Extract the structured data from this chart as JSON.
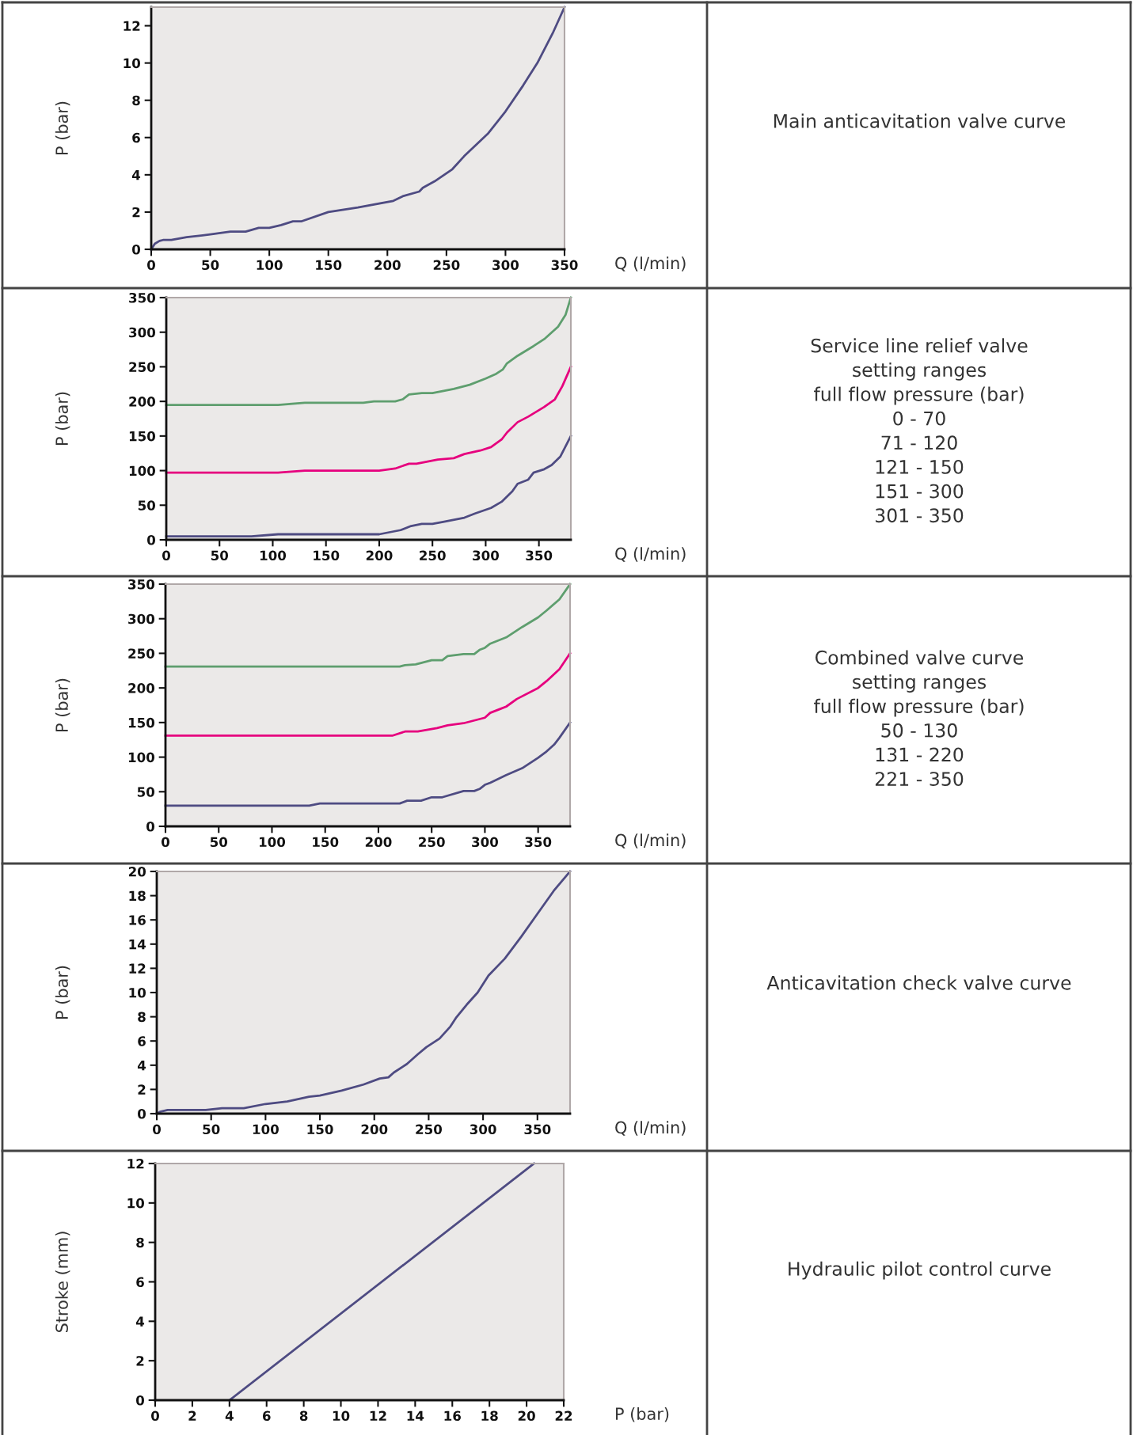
{
  "chart_data": [
    {
      "type": "line",
      "xlabel": "Q (l/min)",
      "ylabel": "P (bar)",
      "xlim": [
        0,
        350
      ],
      "ylim": [
        0,
        13
      ],
      "xticks": [
        0,
        50,
        100,
        150,
        200,
        250,
        300,
        350
      ],
      "yticks": [
        0,
        2,
        4,
        6,
        8,
        10,
        12
      ],
      "grid": false,
      "legend": false,
      "marker": "none",
      "line_style": "solid",
      "series": [
        {
          "color": "#4e4b82",
          "x": [
            0,
            3,
            7,
            10,
            17,
            30,
            50,
            67,
            80,
            91,
            100,
            110,
            120,
            127,
            150,
            175,
            205,
            213,
            227,
            230,
            240,
            255,
            265,
            285,
            300,
            315,
            327,
            340,
            350
          ],
          "values": [
            0,
            0.3,
            0.45,
            0.5,
            0.5,
            0.65,
            0.8,
            0.95,
            0.95,
            1.15,
            1.15,
            1.3,
            1.5,
            1.5,
            2.0,
            2.25,
            2.6,
            2.85,
            3.1,
            3.3,
            3.65,
            4.3,
            5.0,
            6.2,
            7.4,
            8.8,
            10.0,
            11.6,
            13.0
          ]
        }
      ]
    },
    {
      "type": "other",
      "annotations": [
        "Main anticavitation valve curve"
      ]
    },
    {
      "type": "line",
      "xlabel": "Q (l/min)",
      "ylabel": "P (bar)",
      "xlim": [
        0,
        380
      ],
      "ylim": [
        0,
        350
      ],
      "xticks": [
        0,
        50,
        100,
        150,
        200,
        250,
        300,
        350
      ],
      "yticks": [
        0,
        50,
        100,
        150,
        200,
        250,
        300,
        350
      ],
      "grid": false,
      "legend": false,
      "marker": "none",
      "line_style": "solid",
      "series": [
        {
          "color": "#5e9e6e",
          "x": [
            0,
            105,
            130,
            185,
            195,
            215,
            222,
            228,
            240,
            250,
            270,
            285,
            300,
            310,
            316,
            320,
            330,
            345,
            355,
            368,
            375,
            380
          ],
          "values": [
            195,
            195,
            198,
            198,
            200,
            200,
            203,
            210,
            212,
            212,
            218,
            224,
            233,
            240,
            246,
            255,
            266,
            280,
            290,
            308,
            325,
            350
          ]
        },
        {
          "color": "#e6007e",
          "x": [
            0,
            105,
            130,
            200,
            215,
            228,
            235,
            255,
            270,
            280,
            295,
            305,
            315,
            320,
            330,
            340,
            355,
            365,
            372,
            380
          ],
          "values": [
            97,
            97,
            100,
            100,
            103,
            110,
            110,
            116,
            118,
            124,
            129,
            134,
            145,
            155,
            170,
            178,
            192,
            203,
            222,
            250
          ]
        },
        {
          "color": "#4e4b82",
          "x": [
            0,
            80,
            105,
            200,
            220,
            230,
            240,
            250,
            260,
            280,
            290,
            305,
            315,
            325,
            330,
            340,
            345,
            355,
            362,
            370,
            380
          ],
          "values": [
            5,
            5,
            8,
            8,
            14,
            20,
            23,
            23,
            26,
            32,
            38,
            46,
            55,
            70,
            81,
            87,
            97,
            102,
            108,
            120,
            150
          ]
        }
      ]
    },
    {
      "type": "other",
      "annotations": [
        "Service line relief valve",
        "setting ranges",
        "full flow pressure (bar)",
        "0 - 70",
        "71 - 120",
        "121 - 150",
        "151 - 300",
        "301 - 350"
      ]
    },
    {
      "type": "line",
      "xlabel": "Q (l/min)",
      "ylabel": "P (bar)",
      "xlim": [
        0,
        380
      ],
      "ylim": [
        0,
        350
      ],
      "xticks": [
        0,
        50,
        100,
        150,
        200,
        250,
        300,
        350
      ],
      "yticks": [
        0,
        50,
        100,
        150,
        200,
        250,
        300,
        350
      ],
      "grid": false,
      "legend": false,
      "marker": "none",
      "line_style": "solid",
      "series": [
        {
          "color": "#5e9e6e",
          "x": [
            0,
            220,
            225,
            235,
            250,
            260,
            265,
            280,
            290,
            295,
            300,
            305,
            320,
            335,
            350,
            358,
            370,
            380
          ],
          "values": [
            231,
            231,
            233,
            234,
            240,
            240,
            246,
            249,
            249,
            255,
            258,
            264,
            273,
            288,
            302,
            312,
            328,
            350
          ]
        },
        {
          "color": "#e6007e",
          "x": [
            0,
            213,
            225,
            237,
            255,
            265,
            280,
            300,
            305,
            315,
            320,
            330,
            350,
            358,
            370,
            380
          ],
          "values": [
            131,
            131,
            137,
            137,
            142,
            146,
            149,
            157,
            164,
            170,
            173,
            184,
            200,
            210,
            227,
            250
          ]
        },
        {
          "color": "#4e4b82",
          "x": [
            0,
            135,
            145,
            220,
            227,
            240,
            250,
            260,
            280,
            290,
            295,
            300,
            305,
            320,
            335,
            350,
            357,
            365,
            370,
            380
          ],
          "values": [
            30,
            30,
            33,
            33,
            37,
            37,
            42,
            42,
            51,
            51,
            54,
            60,
            63,
            74,
            84,
            99,
            107,
            118,
            128,
            150
          ]
        }
      ]
    },
    {
      "type": "other",
      "annotations": [
        "Combined valve curve",
        "setting ranges",
        "full flow pressure (bar)",
        "50 - 130",
        "131 - 220",
        "221 - 350"
      ]
    },
    {
      "type": "line",
      "xlabel": "Q (l/min)",
      "ylabel": "P (bar)",
      "xlim": [
        0,
        380
      ],
      "ylim": [
        0,
        20
      ],
      "xticks": [
        0,
        50,
        100,
        150,
        200,
        250,
        300,
        350
      ],
      "yticks": [
        0,
        2,
        4,
        6,
        8,
        10,
        12,
        14,
        16,
        18,
        20
      ],
      "grid": false,
      "legend": false,
      "marker": "none",
      "line_style": "solid",
      "series": [
        {
          "color": "#4e4b82",
          "x": [
            0,
            3,
            10,
            45,
            60,
            80,
            100,
            120,
            140,
            150,
            170,
            190,
            205,
            213,
            218,
            230,
            240,
            248,
            260,
            270,
            275,
            285,
            295,
            305,
            320,
            335,
            350,
            365,
            380
          ],
          "values": [
            0,
            0.15,
            0.3,
            0.3,
            0.45,
            0.45,
            0.8,
            1.0,
            1.4,
            1.5,
            1.9,
            2.4,
            2.9,
            3.0,
            3.4,
            4.1,
            4.9,
            5.5,
            6.2,
            7.2,
            7.9,
            9.0,
            10.0,
            11.4,
            12.8,
            14.6,
            16.5,
            18.4,
            20
          ]
        }
      ]
    },
    {
      "type": "other",
      "annotations": [
        "Anticavitation check valve curve"
      ]
    },
    {
      "type": "line",
      "xlabel": "P (bar)",
      "ylabel": "Stroke (mm)",
      "xlim": [
        0,
        22
      ],
      "ylim": [
        0,
        12
      ],
      "xticks": [
        0,
        2,
        4,
        6,
        8,
        10,
        12,
        14,
        16,
        18,
        20,
        22
      ],
      "yticks": [
        0,
        2,
        4,
        6,
        8,
        10,
        12
      ],
      "grid": false,
      "legend": false,
      "marker": "none",
      "line_style": "solid",
      "series": [
        {
          "color": "#4e4b82",
          "x": [
            4,
            20.4
          ],
          "values": [
            0,
            12
          ]
        }
      ]
    },
    {
      "type": "other",
      "annotations": [
        "Hydraulic pilot control curve"
      ]
    }
  ]
}
